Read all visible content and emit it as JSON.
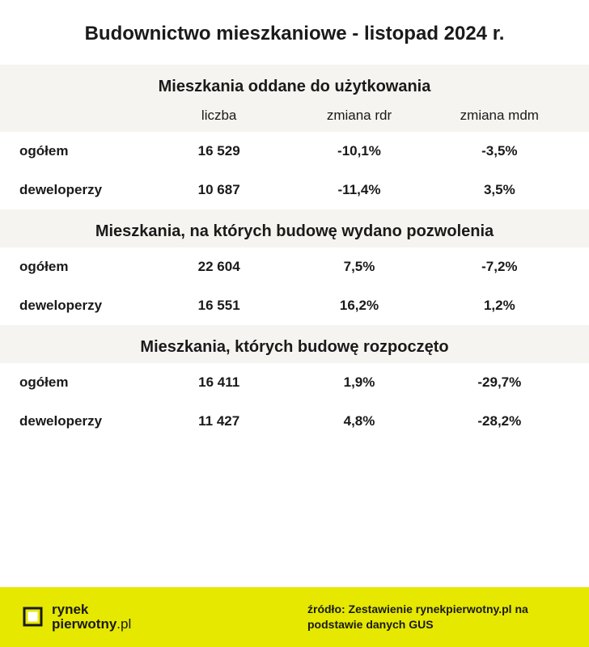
{
  "title": "Budownictwo mieszkaniowe - listopad 2024 r.",
  "columns": {
    "label": "",
    "count": "liczba",
    "yoy": "zmiana rdr",
    "mom": "zmiana mdm"
  },
  "sections": [
    {
      "header": "Mieszkania oddane do użytkowania",
      "show_col_headers": true,
      "rows": [
        {
          "label": "ogółem",
          "count": "16 529",
          "yoy": "-10,1%",
          "mom": "-3,5%"
        },
        {
          "label": "deweloperzy",
          "count": "10 687",
          "yoy": "-11,4%",
          "mom": "3,5%"
        }
      ]
    },
    {
      "header": "Mieszkania, na których budowę wydano pozwolenia",
      "show_col_headers": false,
      "rows": [
        {
          "label": "ogółem",
          "count": "22 604",
          "yoy": "7,5%",
          "mom": "-7,2%"
        },
        {
          "label": "deweloperzy",
          "count": "16 551",
          "yoy": "16,2%",
          "mom": "1,2%"
        }
      ]
    },
    {
      "header": "Mieszkania, których budowę rozpoczęto",
      "show_col_headers": false,
      "rows": [
        {
          "label": "ogółem",
          "count": "16 411",
          "yoy": "1,9%",
          "mom": "-29,7%"
        },
        {
          "label": "deweloperzy",
          "count": "11 427",
          "yoy": "4,8%",
          "mom": "-28,2%"
        }
      ]
    }
  ],
  "footer": {
    "brand_line1": "rynek",
    "brand_line2": "pierwotny",
    "brand_suffix": ".pl",
    "source": "źródło: Zestawienie rynekpierwotny.pl na podstawie danych GUS"
  },
  "style": {
    "page_bg": "#ffffff",
    "section_header_bg": "#f6f4f0",
    "row_bg": "#ffffff",
    "text_color": "#1a1a1a",
    "footer_bg": "#e6e800",
    "title_fontsize": 24,
    "section_header_fontsize": 20,
    "cell_fontsize": 17,
    "source_fontsize": 14,
    "font_family": "Arial, Helvetica, sans-serif"
  }
}
